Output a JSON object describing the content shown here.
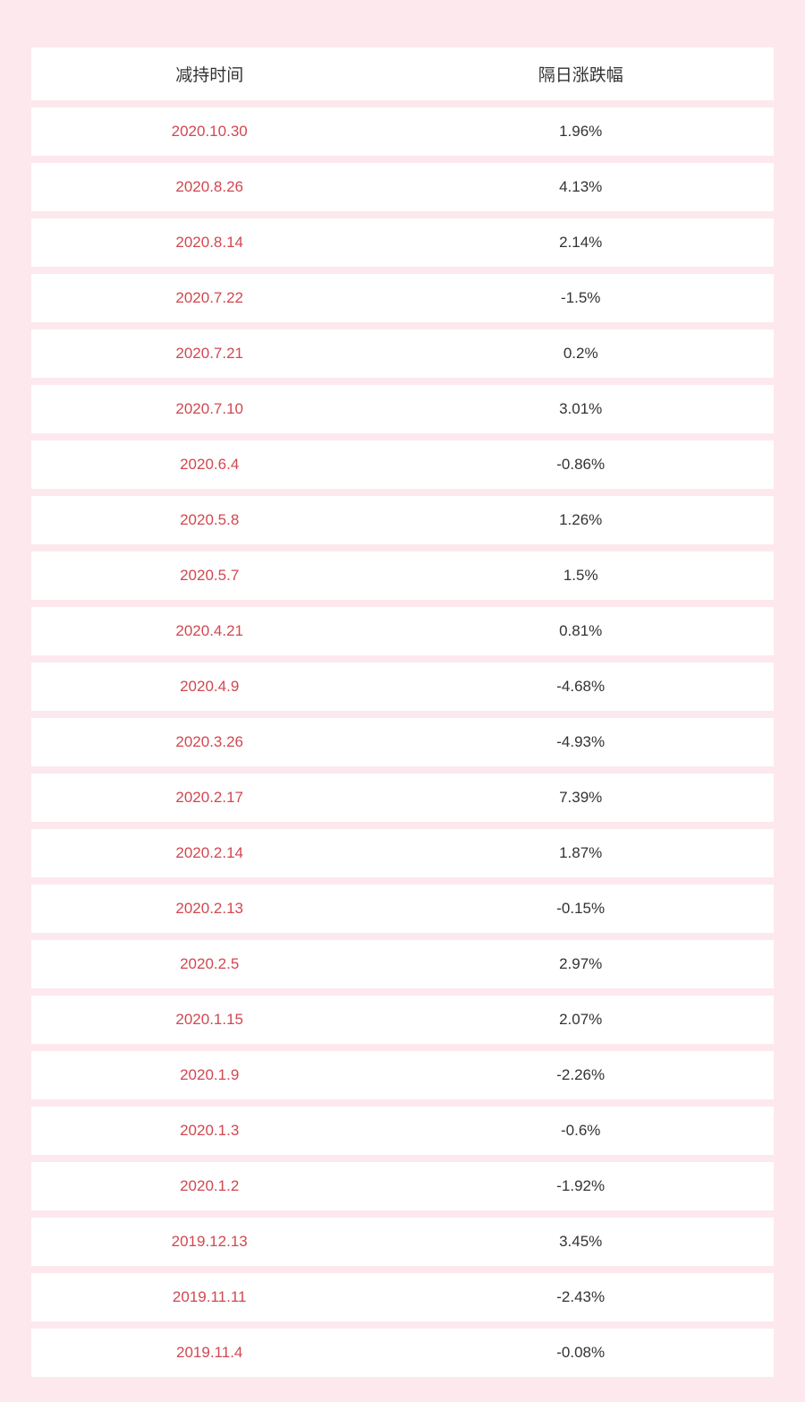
{
  "table": {
    "columns": [
      {
        "label": "减持时间",
        "key": "date"
      },
      {
        "label": "隔日涨跌幅",
        "key": "change"
      }
    ],
    "rows": [
      {
        "date": "2020.10.30",
        "change": "1.96%"
      },
      {
        "date": "2020.8.26",
        "change": "4.13%"
      },
      {
        "date": "2020.8.14",
        "change": "2.14%"
      },
      {
        "date": "2020.7.22",
        "change": "-1.5%"
      },
      {
        "date": "2020.7.21",
        "change": "0.2%"
      },
      {
        "date": "2020.7.10",
        "change": "3.01%"
      },
      {
        "date": "2020.6.4",
        "change": "-0.86%"
      },
      {
        "date": "2020.5.8",
        "change": "1.26%"
      },
      {
        "date": "2020.5.7",
        "change": "1.5%"
      },
      {
        "date": "2020.4.21",
        "change": "0.81%"
      },
      {
        "date": "2020.4.9",
        "change": "-4.68%"
      },
      {
        "date": "2020.3.26",
        "change": "-4.93%"
      },
      {
        "date": "2020.2.17",
        "change": "7.39%"
      },
      {
        "date": "2020.2.14",
        "change": "1.87%"
      },
      {
        "date": "2020.2.13",
        "change": "-0.15%"
      },
      {
        "date": "2020.2.5",
        "change": "2.97%"
      },
      {
        "date": "2020.1.15",
        "change": "2.07%"
      },
      {
        "date": "2020.1.9",
        "change": "-2.26%"
      },
      {
        "date": "2020.1.3",
        "change": "-0.6%"
      },
      {
        "date": "2020.1.2",
        "change": "-1.92%"
      },
      {
        "date": "2019.12.13",
        "change": "3.45%"
      },
      {
        "date": "2019.11.11",
        "change": "-2.43%"
      },
      {
        "date": "2019.11.4",
        "change": "-0.08%"
      }
    ],
    "styling": {
      "background_color": "#fce8ed",
      "row_background": "#ffffff",
      "date_text_color": "#d14850",
      "value_text_color": "#333333",
      "header_text_color": "#333333",
      "header_fontsize": 19,
      "cell_fontsize": 17,
      "row_gap": 8
    }
  }
}
